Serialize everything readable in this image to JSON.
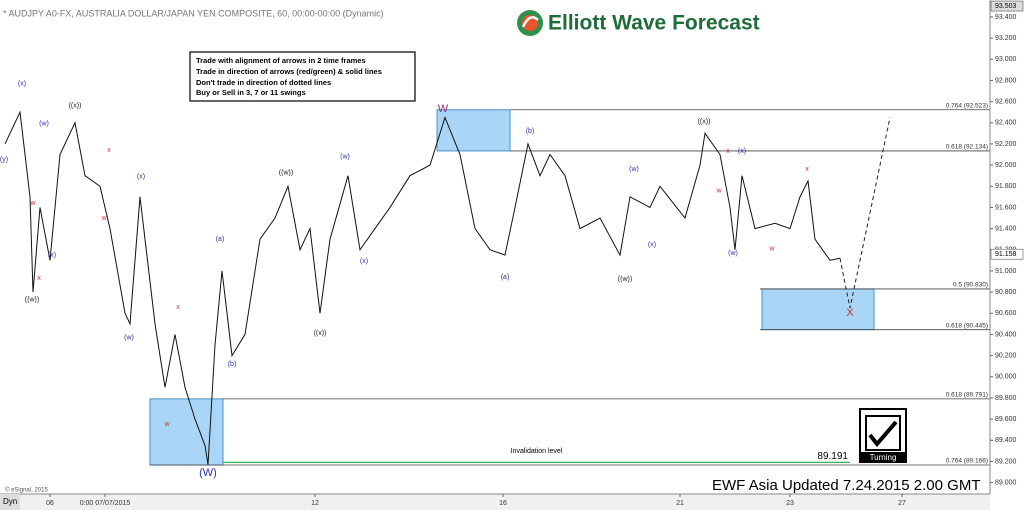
{
  "chart_data": {
    "type": "line",
    "title": "* AUDJPY A0-FX, AUSTRALIA DOLLAR/JAPAN YEN COMPOSITE, 60, 00:00-00:00 (Dynamic)",
    "color": "#111111",
    "x": [
      0.5,
      2,
      3,
      3.3,
      4,
      5,
      6,
      7.5,
      8.5,
      10,
      11,
      12.5,
      13,
      14,
      15.5,
      16.5,
      17.5,
      18.5,
      19.5,
      20.5,
      20.8,
      21.5,
      22.2,
      23.2,
      24.5,
      26,
      27.5,
      28.8,
      30,
      31,
      32,
      33,
      34.8,
      36,
      37.5,
      39,
      41,
      43,
      44.5,
      46,
      47.5,
      49,
      50.5,
      51.5,
      52.8,
      54,
      55,
      56.5,
      58,
      60,
      62,
      63,
      65,
      66,
      68.5,
      70,
      70.5,
      72,
      73,
      73.5,
      74.2,
      75.5,
      77.5,
      79,
      80,
      80.8,
      81.5,
      83,
      84
    ],
    "values": [
      92.2,
      92.5,
      91.7,
      90.8,
      91.6,
      91.1,
      92.1,
      92.4,
      91.9,
      91.8,
      91.4,
      90.6,
      90.5,
      91.7,
      90.5,
      89.9,
      90.4,
      89.9,
      89.6,
      89.35,
      89.17,
      90.3,
      91.0,
      90.2,
      90.4,
      91.3,
      91.5,
      91.8,
      91.2,
      91.4,
      90.6,
      91.3,
      91.9,
      91.2,
      91.4,
      91.6,
      91.9,
      92.0,
      92.45,
      92.1,
      91.4,
      91.2,
      91.15,
      91.6,
      92.2,
      91.9,
      92.1,
      91.9,
      91.4,
      91.5,
      91.15,
      91.7,
      91.6,
      91.8,
      91.5,
      92.0,
      92.3,
      92.1,
      91.6,
      91.2,
      91.9,
      91.4,
      91.45,
      91.4,
      91.7,
      91.85,
      91.3,
      91.1,
      91.12
    ],
    "projection": {
      "x": [
        84,
        85,
        89
      ],
      "values": [
        91.12,
        90.65,
        92.45
      ]
    },
    "xlim": [
      0,
      99
    ],
    "ylim": [
      88.93,
      93.56
    ],
    "xticks": [
      {
        "value": 5,
        "label": "06"
      },
      {
        "value": 10.5,
        "label": "0:00 07/07/2015"
      },
      {
        "value": 31.5,
        "label": "12"
      },
      {
        "value": 50.3,
        "label": "16"
      },
      {
        "value": 68,
        "label": "21"
      },
      {
        "value": 79,
        "label": "23"
      },
      {
        "value": 90.2,
        "label": "27"
      }
    ],
    "yticks": [
      {
        "value": 89.0,
        "label": "89.000"
      },
      {
        "value": 89.2,
        "label": "89.200"
      },
      {
        "value": 89.4,
        "label": "89.400"
      },
      {
        "value": 89.6,
        "label": "89.600"
      },
      {
        "value": 89.8,
        "label": "89.800"
      },
      {
        "value": 90.0,
        "label": "90.000"
      },
      {
        "value": 90.2,
        "label": "90.200"
      },
      {
        "value": 90.4,
        "label": "90.400"
      },
      {
        "value": 90.6,
        "label": "90.600"
      },
      {
        "value": 90.8,
        "label": "90.800"
      },
      {
        "value": 91.0,
        "label": "91.000"
      },
      {
        "value": 91.2,
        "label": "91.200"
      },
      {
        "value": 91.4,
        "label": "91.400"
      },
      {
        "value": 91.6,
        "label": "91.600"
      },
      {
        "value": 91.8,
        "label": "91.800"
      },
      {
        "value": 92.0,
        "label": "92.000"
      },
      {
        "value": 92.2,
        "label": "92.200"
      },
      {
        "value": 92.4,
        "label": "92.400"
      },
      {
        "value": 92.6,
        "label": "92.600"
      },
      {
        "value": 92.8,
        "label": "92.800"
      },
      {
        "value": 93.0,
        "label": "93.000"
      },
      {
        "value": 93.2,
        "label": "93.200"
      },
      {
        "value": 93.4,
        "label": "93.400"
      }
    ],
    "price_tags": [
      93.503,
      91.158
    ],
    "levels": [
      {
        "value": 92.523,
        "label": "0.764 (92.523)",
        "x_start": 51
      },
      {
        "value": 92.134,
        "label": "0.618 (92.134)",
        "x_start": 51
      },
      {
        "value": 90.83,
        "label": "0.5 (90.830)",
        "x_start": 76
      },
      {
        "value": 90.445,
        "label": "0.618 (90.445)",
        "x_start": 76
      },
      {
        "value": 89.791,
        "label": "0.618 (89.791)",
        "x_start": 22.3
      },
      {
        "value": 89.166,
        "label": "0.764 (89.166)",
        "x_start": 15
      }
    ],
    "zones": [
      {
        "x": [
          43.7,
          51
        ],
        "y": [
          92.134,
          92.523
        ]
      },
      {
        "x": [
          76.2,
          87.4
        ],
        "y": [
          90.445,
          90.83
        ]
      },
      {
        "x": [
          15,
          22.3
        ],
        "y": [
          89.166,
          89.791
        ]
      }
    ],
    "invalidation": {
      "label": "Invalidation level",
      "value": 89.191,
      "x": [
        22.3,
        85
      ]
    },
    "annotations": [
      {
        "text": "(y)",
        "x": 0.4,
        "y": 92.05,
        "color": "#3333aa"
      },
      {
        "text": "(x)",
        "x": 2.2,
        "y": 92.77,
        "color": "#3333aa"
      },
      {
        "text": "(w)",
        "x": 4.4,
        "y": 92.39,
        "color": "#3333aa"
      },
      {
        "text": "((x))",
        "x": 7.5,
        "y": 92.56,
        "color": "#222222"
      },
      {
        "text": "x",
        "x": 10.9,
        "y": 92.14,
        "color": "#cc3333"
      },
      {
        "text": "(x)",
        "x": 14.1,
        "y": 91.89,
        "color": "#3333aa"
      },
      {
        "text": "w",
        "x": 3.3,
        "y": 91.64,
        "color": "#cc3333"
      },
      {
        "text": "(x)",
        "x": 5.2,
        "y": 91.15,
        "color": "#3333aa"
      },
      {
        "text": "x",
        "x": 3.9,
        "y": 90.93,
        "color": "#cc3333"
      },
      {
        "text": "((w))",
        "x": 3.2,
        "y": 90.73,
        "color": "#222222"
      },
      {
        "text": "w",
        "x": 10.4,
        "y": 91.5,
        "color": "#cc3333"
      },
      {
        "text": "(w)",
        "x": 12.9,
        "y": 90.37,
        "color": "#3333aa"
      },
      {
        "text": "x",
        "x": 17.8,
        "y": 90.66,
        "color": "#cc3333"
      },
      {
        "text": "w",
        "x": 16.7,
        "y": 89.55,
        "color": "#cc3333"
      },
      {
        "text": "(W)",
        "x": 20.8,
        "y": 89.09,
        "color": "#3333aa"
      },
      {
        "text": "(a)",
        "x": 22,
        "y": 91.3,
        "color": "#3333aa"
      },
      {
        "text": "(b)",
        "x": 23.2,
        "y": 90.12,
        "color": "#3333aa"
      },
      {
        "text": "((w))",
        "x": 28.6,
        "y": 91.93,
        "color": "#222222"
      },
      {
        "text": "(w)",
        "x": 34.5,
        "y": 92.08,
        "color": "#3333aa"
      },
      {
        "text": "(x)",
        "x": 36.4,
        "y": 91.09,
        "color": "#3333aa"
      },
      {
        "text": "((x))",
        "x": 32,
        "y": 90.41,
        "color": "#222222"
      },
      {
        "text": "W",
        "x": 44.3,
        "y": 92.53,
        "color": "#993366"
      },
      {
        "text": "(b)",
        "x": 53,
        "y": 92.32,
        "color": "#3333aa"
      },
      {
        "text": "(a)",
        "x": 50.5,
        "y": 90.94,
        "color": "#3333aa"
      },
      {
        "text": "((w))",
        "x": 62.5,
        "y": 90.92,
        "color": "#222222"
      },
      {
        "text": "(w)",
        "x": 63.4,
        "y": 91.96,
        "color": "#3333aa"
      },
      {
        "text": "(x)",
        "x": 65.2,
        "y": 91.25,
        "color": "#3333aa"
      },
      {
        "text": "((x))",
        "x": 70.4,
        "y": 92.41,
        "color": "#222222"
      },
      {
        "text": "x",
        "x": 72.8,
        "y": 92.13,
        "color": "#cc3333"
      },
      {
        "text": "(x)",
        "x": 74.2,
        "y": 92.13,
        "color": "#3333aa"
      },
      {
        "text": "w",
        "x": 71.9,
        "y": 91.76,
        "color": "#cc3333"
      },
      {
        "text": "(w)",
        "x": 73.3,
        "y": 91.17,
        "color": "#3333aa"
      },
      {
        "text": "w",
        "x": 77.2,
        "y": 91.21,
        "color": "#cc3333"
      },
      {
        "text": "x",
        "x": 80.7,
        "y": 91.96,
        "color": "#cc3333"
      },
      {
        "text": "X",
        "x": 85,
        "y": 90.6,
        "color": "#cc3333"
      }
    ]
  },
  "logo": "Elliott Wave Forecast",
  "rules": [
    "Trade with alignment of arrows in 2 time frames",
    "Trade in direction of arrows (red/green) & solid lines",
    "Don't trade in direction of dotted lines",
    "Buy or Sell in 3, 7 or 11 swings"
  ],
  "copyright": "© eSignal, 2015",
  "updated": "EWF Asia Updated 7.24.2015 2.00 GMT",
  "badge": "Turning",
  "corner": "Dyn"
}
